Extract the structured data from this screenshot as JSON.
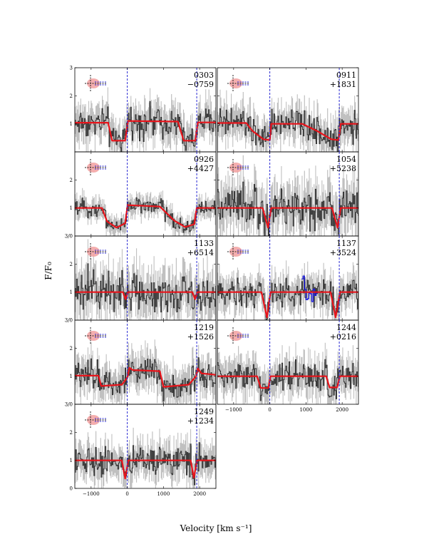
{
  "chart_data": {
    "type": "line",
    "xlabel": "Velocity [km s⁻¹]",
    "ylabel": "F/F₀",
    "xlim": [
      -1450,
      2450
    ],
    "ylim": [
      0,
      3
    ],
    "x_ticks": [
      -1000,
      0,
      1000,
      2000
    ],
    "y_ticks": [
      0,
      1,
      2,
      3
    ],
    "y_tick_labels_top_panel": [
      "1",
      "2",
      "3"
    ],
    "y_tick_labels_inner_panel": [
      "1",
      "2",
      "3/0"
    ],
    "y_tick_labels_bottom_panel": [
      "0",
      "1",
      "2"
    ],
    "reference_velocities": [
      0,
      1920
    ],
    "colors": {
      "spectrum": "#333333",
      "error": "#c0c0c0",
      "model": "#e8141b",
      "reference_line": "#2a2ad4",
      "masked": "#1010e6",
      "icon_fill": "#f2a0a0"
    },
    "panels": [
      {
        "id": "0303",
        "label_top": "0303",
        "label_bottom": "−0759",
        "model": [
          [
            -1450,
            1.04
          ],
          [
            -530,
            1.04
          ],
          [
            -420,
            0.4
          ],
          [
            -60,
            0.4
          ],
          [
            20,
            1.1
          ],
          [
            1400,
            1.08
          ],
          [
            1560,
            0.4
          ],
          [
            1880,
            0.4
          ],
          [
            1950,
            1.05
          ],
          [
            2450,
            1.05
          ]
        ]
      },
      {
        "id": "0911",
        "label_top": "0911",
        "label_bottom": "+1831",
        "model": [
          [
            -1450,
            1.03
          ],
          [
            -650,
            1.03
          ],
          [
            -480,
            0.75
          ],
          [
            -180,
            0.45
          ],
          [
            0,
            0.42
          ],
          [
            40,
            1.0
          ],
          [
            900,
            1.0
          ],
          [
            1300,
            0.75
          ],
          [
            1700,
            0.45
          ],
          [
            1900,
            0.42
          ],
          [
            1960,
            1.0
          ],
          [
            2450,
            1.0
          ]
        ]
      },
      {
        "id": "0926",
        "label_top": "0926",
        "label_bottom": "+4427",
        "model": [
          [
            -1450,
            1.0
          ],
          [
            -700,
            1.0
          ],
          [
            -560,
            0.52
          ],
          [
            -300,
            0.3
          ],
          [
            -60,
            0.45
          ],
          [
            10,
            1.1
          ],
          [
            900,
            1.05
          ],
          [
            1300,
            0.55
          ],
          [
            1600,
            0.32
          ],
          [
            1850,
            0.42
          ],
          [
            1920,
            1.0
          ],
          [
            2450,
            1.0
          ]
        ]
      },
      {
        "id": "1054",
        "label_top": "1054",
        "label_bottom": "+5238",
        "model": [
          [
            -1450,
            1.0
          ],
          [
            -200,
            1.0
          ],
          [
            -50,
            0.3
          ],
          [
            40,
            1.0
          ],
          [
            1720,
            1.0
          ],
          [
            1870,
            0.3
          ],
          [
            1960,
            1.0
          ],
          [
            2450,
            1.0
          ]
        ]
      },
      {
        "id": "1133",
        "label_top": "1133",
        "label_bottom": "+6514",
        "model": [
          [
            -1450,
            1.0
          ],
          [
            -120,
            1.0
          ],
          [
            -50,
            0.75
          ],
          [
            20,
            1.0
          ],
          [
            1800,
            1.0
          ],
          [
            1870,
            0.75
          ],
          [
            1940,
            1.0
          ],
          [
            2450,
            1.0
          ]
        ]
      },
      {
        "id": "1137",
        "label_top": "1137",
        "label_bottom": "+3524",
        "model": [
          [
            -1450,
            1.0
          ],
          [
            -230,
            1.0
          ],
          [
            -80,
            0.1
          ],
          [
            20,
            1.0
          ],
          [
            1680,
            1.0
          ],
          [
            1820,
            0.1
          ],
          [
            1940,
            1.0
          ],
          [
            2450,
            1.0
          ]
        ]
      },
      {
        "id": "1219",
        "label_top": "1219",
        "label_bottom": "+1526",
        "model": [
          [
            -1450,
            1.02
          ],
          [
            -800,
            1.02
          ],
          [
            -720,
            0.65
          ],
          [
            -150,
            0.7
          ],
          [
            0,
            0.95
          ],
          [
            60,
            1.3
          ],
          [
            150,
            1.22
          ],
          [
            900,
            1.18
          ],
          [
            1000,
            0.62
          ],
          [
            1700,
            0.7
          ],
          [
            1900,
            1.0
          ],
          [
            1950,
            1.28
          ],
          [
            2050,
            1.1
          ],
          [
            2450,
            1.05
          ]
        ]
      },
      {
        "id": "1244",
        "label_top": "1244",
        "label_bottom": "+0216",
        "model": [
          [
            -1450,
            1.0
          ],
          [
            -350,
            1.0
          ],
          [
            -250,
            0.58
          ],
          [
            -40,
            0.58
          ],
          [
            20,
            1.0
          ],
          [
            1560,
            1.0
          ],
          [
            1650,
            0.6
          ],
          [
            1860,
            0.6
          ],
          [
            1940,
            1.0
          ],
          [
            2450,
            1.0
          ]
        ]
      },
      {
        "id": "1249",
        "label_top": "1249",
        "label_bottom": "+1234",
        "model": [
          [
            -1450,
            1.0
          ],
          [
            -150,
            1.0
          ],
          [
            -60,
            0.35
          ],
          [
            30,
            1.0
          ],
          [
            1750,
            1.0
          ],
          [
            1840,
            0.38
          ],
          [
            1930,
            1.0
          ],
          [
            2450,
            1.0
          ]
        ]
      }
    ]
  }
}
